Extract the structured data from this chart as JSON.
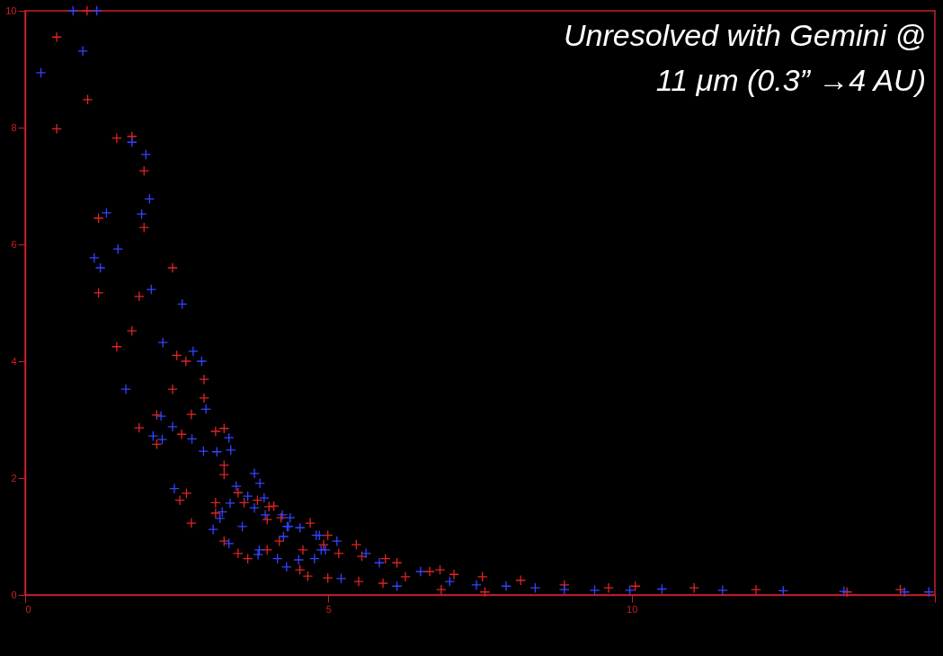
{
  "chart_data": {
    "type": "scatter",
    "title": "Unresolved with Gemini @",
    "subtitle": "11 μm  (0.3” →4 AU)",
    "xlim": [
      0,
      15
    ],
    "ylim": [
      0,
      10
    ],
    "xticks": [
      0,
      5,
      10,
      {
        "value": 15,
        "label": null
      }
    ],
    "yticks": [
      0,
      2,
      4,
      6,
      8,
      10
    ],
    "grid": false,
    "marker": "cross",
    "series": [
      {
        "color": "#e02424",
        "x": [
          0.52,
          1.03,
          0.52,
          1.51,
          1.76,
          1.96,
          1.21,
          1.96,
          2.43,
          1.21,
          1.88,
          1.02,
          1.76,
          1.51,
          2.5,
          2.65,
          2.95,
          2.43,
          2.95,
          2.74,
          2.17,
          1.88,
          3.14,
          3.28,
          2.58,
          2.17,
          3.28,
          3.28,
          3.51,
          2.66,
          2.55,
          3.14,
          3.14,
          2.74,
          3.61,
          3.83,
          4.02,
          3.99,
          3.28,
          3.51,
          3.67,
          3.99,
          4.22,
          4.7,
          4.58,
          4.53,
          4.66,
          4.19,
          4.1,
          4.99,
          4.92,
          5.17,
          5.46,
          5.55,
          4.99,
          5.5,
          5.94,
          6.13,
          5.9,
          6.27,
          6.67,
          6.84,
          7.07,
          7.54,
          8.17,
          8.89,
          6.86,
          7.58,
          9.62,
          10.06,
          11.03,
          12.05,
          13.55,
          14.43
        ],
        "values": [
          9.55,
          8.48,
          7.98,
          7.82,
          7.85,
          7.26,
          6.45,
          6.29,
          5.6,
          5.17,
          5.11,
          10.0,
          4.52,
          4.25,
          4.1,
          4.0,
          3.69,
          3.52,
          3.37,
          3.09,
          3.08,
          2.86,
          2.8,
          2.85,
          2.75,
          2.58,
          2.22,
          2.06,
          1.75,
          1.74,
          1.62,
          1.58,
          1.4,
          1.23,
          1.58,
          1.62,
          1.51,
          1.29,
          0.92,
          0.71,
          0.62,
          0.77,
          1.32,
          1.23,
          0.77,
          0.43,
          0.32,
          0.92,
          1.52,
          1.02,
          0.86,
          0.71,
          0.86,
          0.66,
          0.29,
          0.23,
          0.62,
          0.55,
          0.2,
          0.31,
          0.4,
          0.43,
          0.35,
          0.31,
          0.25,
          0.17,
          0.09,
          0.05,
          0.12,
          0.15,
          0.12,
          0.09,
          0.05,
          0.09
        ]
      },
      {
        "color": "#3344ff",
        "x": [
          0.79,
          1.18,
          0.95,
          0.26,
          1.76,
          1.99,
          2.05,
          1.34,
          1.92,
          1.53,
          1.14,
          1.24,
          2.08,
          2.59,
          2.27,
          2.77,
          2.91,
          1.66,
          2.98,
          2.24,
          2.43,
          2.11,
          2.26,
          2.75,
          2.94,
          3.16,
          3.36,
          3.39,
          3.78,
          3.87,
          2.46,
          3.48,
          3.67,
          3.94,
          3.38,
          3.78,
          3.25,
          3.21,
          3.96,
          3.1,
          3.58,
          4.24,
          4.37,
          4.32,
          4.53,
          4.26,
          3.36,
          3.86,
          3.84,
          4.16,
          4.51,
          4.31,
          4.8,
          4.88,
          4.34,
          4.85,
          5.14,
          4.95,
          5.62,
          5.84,
          5.21,
          4.77,
          6.13,
          6.52,
          7.0,
          7.44,
          7.93,
          8.41,
          8.89,
          9.39,
          9.97,
          10.5,
          11.5,
          12.5,
          13.5,
          14.5,
          14.9
        ],
        "values": [
          10.0,
          10.0,
          9.31,
          8.94,
          7.75,
          7.54,
          6.78,
          6.54,
          6.52,
          5.92,
          5.77,
          5.6,
          5.23,
          4.98,
          4.32,
          4.17,
          4.0,
          3.52,
          3.18,
          3.06,
          2.88,
          2.72,
          2.66,
          2.67,
          2.46,
          2.45,
          2.69,
          2.48,
          2.08,
          1.91,
          1.82,
          1.86,
          1.69,
          1.66,
          1.57,
          1.49,
          1.42,
          1.31,
          1.37,
          1.12,
          1.17,
          1.37,
          1.32,
          1.17,
          1.15,
          1.0,
          0.88,
          0.77,
          0.69,
          0.62,
          0.6,
          0.48,
          1.02,
          0.77,
          1.17,
          1.02,
          0.92,
          0.77,
          0.71,
          0.55,
          0.28,
          0.62,
          0.15,
          0.4,
          0.23,
          0.17,
          0.15,
          0.12,
          0.09,
          0.08,
          0.08,
          0.1,
          0.08,
          0.07,
          0.06,
          0.05,
          0.05
        ]
      }
    ]
  }
}
